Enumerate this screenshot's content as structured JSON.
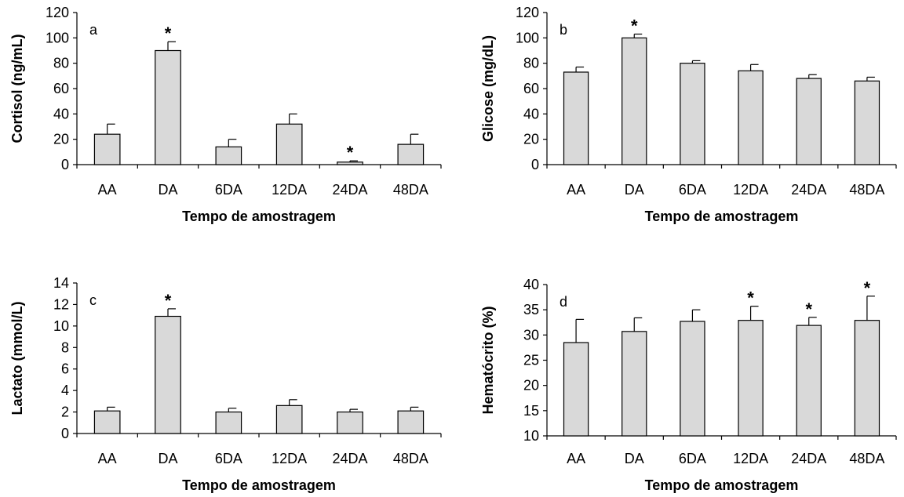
{
  "colors": {
    "bar_fill": "#d9d9d9",
    "stroke": "#000000"
  },
  "chart_data": [
    {
      "type": "bar",
      "panel_label": "a",
      "ylabel": "Cortisol (ng/mL)",
      "xlabel": "Tempo de amostragem",
      "categories": [
        "AA",
        "DA",
        "6DA",
        "12DA",
        "24DA",
        "48DA"
      ],
      "values": [
        24,
        90,
        14,
        32,
        2,
        16
      ],
      "errors": [
        8,
        7,
        6,
        8,
        1,
        8
      ],
      "significant": [
        false,
        true,
        false,
        false,
        true,
        false
      ],
      "significance_marker": "*",
      "ylim": [
        0,
        120
      ],
      "yticks": [
        0,
        20,
        40,
        60,
        80,
        100,
        120
      ]
    },
    {
      "type": "bar",
      "panel_label": "b",
      "ylabel": "Glicose (mg/dL)",
      "xlabel": "Tempo de amostragem",
      "categories": [
        "AA",
        "DA",
        "6DA",
        "12DA",
        "24DA",
        "48DA"
      ],
      "values": [
        73,
        100,
        80,
        74,
        68,
        66
      ],
      "errors": [
        4,
        3,
        2,
        5,
        3,
        3
      ],
      "significant": [
        false,
        true,
        false,
        false,
        false,
        false
      ],
      "significance_marker": "*",
      "ylim": [
        0,
        120
      ],
      "yticks": [
        0,
        20,
        40,
        60,
        80,
        100,
        120
      ]
    },
    {
      "type": "bar",
      "panel_label": "c",
      "ylabel": "Lactato (mmol/L)",
      "xlabel": "Tempo de amostragem",
      "categories": [
        "AA",
        "DA",
        "6DA",
        "12DA",
        "24DA",
        "48DA"
      ],
      "values": [
        2.1,
        10.9,
        2.0,
        2.6,
        2.0,
        2.1
      ],
      "errors": [
        0.35,
        0.7,
        0.35,
        0.55,
        0.25,
        0.35
      ],
      "significant": [
        false,
        true,
        false,
        false,
        false,
        false
      ],
      "significance_marker": "*",
      "ylim": [
        0,
        14
      ],
      "yticks": [
        0,
        2,
        4,
        6,
        8,
        10,
        12,
        14
      ]
    },
    {
      "type": "bar",
      "panel_label": "d",
      "ylabel": "Hematócrito (%)",
      "xlabel": "Tempo de amostragem",
      "categories": [
        "AA",
        "DA",
        "6DA",
        "12DA",
        "24DA",
        "48DA"
      ],
      "values": [
        28.5,
        30.7,
        32.7,
        32.9,
        31.9,
        32.9
      ],
      "errors": [
        4.6,
        2.7,
        2.3,
        2.8,
        1.6,
        4.8
      ],
      "significant": [
        false,
        false,
        false,
        true,
        true,
        true
      ],
      "significance_marker": "*",
      "ylim": [
        10,
        40
      ],
      "yticks": [
        10,
        15,
        20,
        25,
        30,
        35,
        40
      ]
    }
  ]
}
